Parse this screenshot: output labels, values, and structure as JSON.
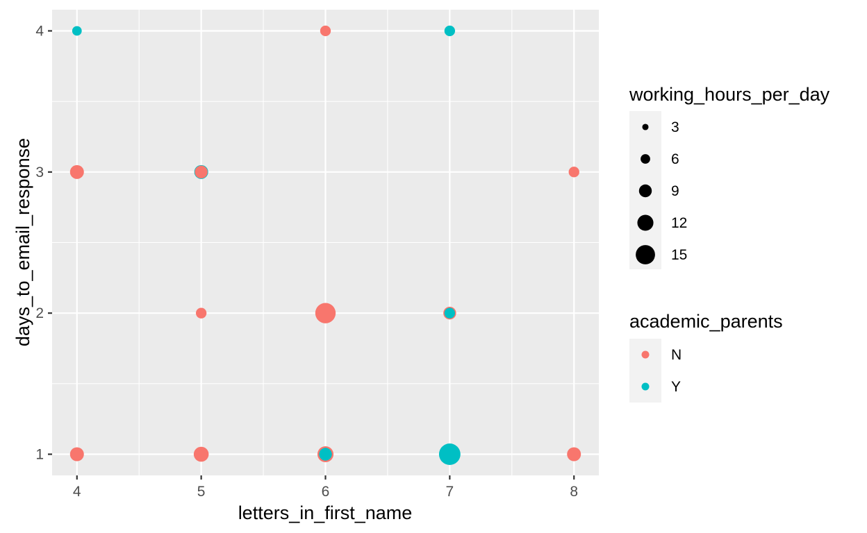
{
  "chart_data": {
    "type": "scatter",
    "title": "",
    "xlabel": "letters_in_first_name",
    "ylabel": "days_to_email_response",
    "xlim": [
      3.8,
      8.2
    ],
    "ylim": [
      0.85,
      4.15
    ],
    "x_ticks": [
      "4",
      "5",
      "6",
      "7",
      "8"
    ],
    "y_ticks": [
      "1",
      "2",
      "3",
      "4"
    ],
    "grid": true,
    "legend_position": "right",
    "size_legend": {
      "title": "working_hours_per_day",
      "levels": [
        {
          "label": "3",
          "value": 3
        },
        {
          "label": "6",
          "value": 6
        },
        {
          "label": "9",
          "value": 9
        },
        {
          "label": "12",
          "value": 12
        },
        {
          "label": "15",
          "value": 15
        }
      ]
    },
    "color_legend": {
      "title": "academic_parents",
      "levels": [
        {
          "label": "N",
          "color": "#F8766D"
        },
        {
          "label": "Y",
          "color": "#00BFC4"
        }
      ]
    },
    "points": [
      {
        "x": 4,
        "y": 4,
        "group": "Y",
        "size": 6
      },
      {
        "x": 6,
        "y": 4,
        "group": "N",
        "size": 7
      },
      {
        "x": 7,
        "y": 4,
        "group": "Y",
        "size": 7
      },
      {
        "x": 4,
        "y": 3,
        "group": "N",
        "size": 10
      },
      {
        "x": 5,
        "y": 3,
        "group": "Y",
        "size": 10
      },
      {
        "x": 5,
        "y": 3,
        "group": "N",
        "size": 9
      },
      {
        "x": 8,
        "y": 3,
        "group": "N",
        "size": 7
      },
      {
        "x": 5,
        "y": 2,
        "group": "N",
        "size": 7
      },
      {
        "x": 6,
        "y": 2,
        "group": "N",
        "size": 16
      },
      {
        "x": 7,
        "y": 2,
        "group": "N",
        "size": 9
      },
      {
        "x": 7,
        "y": 2,
        "group": "Y",
        "size": 7
      },
      {
        "x": 4,
        "y": 1,
        "group": "N",
        "size": 10
      },
      {
        "x": 5,
        "y": 1,
        "group": "N",
        "size": 11
      },
      {
        "x": 6,
        "y": 1,
        "group": "N",
        "size": 12
      },
      {
        "x": 6,
        "y": 1,
        "group": "Y",
        "size": 9
      },
      {
        "x": 7,
        "y": 1,
        "group": "Y",
        "size": 17
      },
      {
        "x": 8,
        "y": 1,
        "group": "N",
        "size": 10
      }
    ]
  }
}
